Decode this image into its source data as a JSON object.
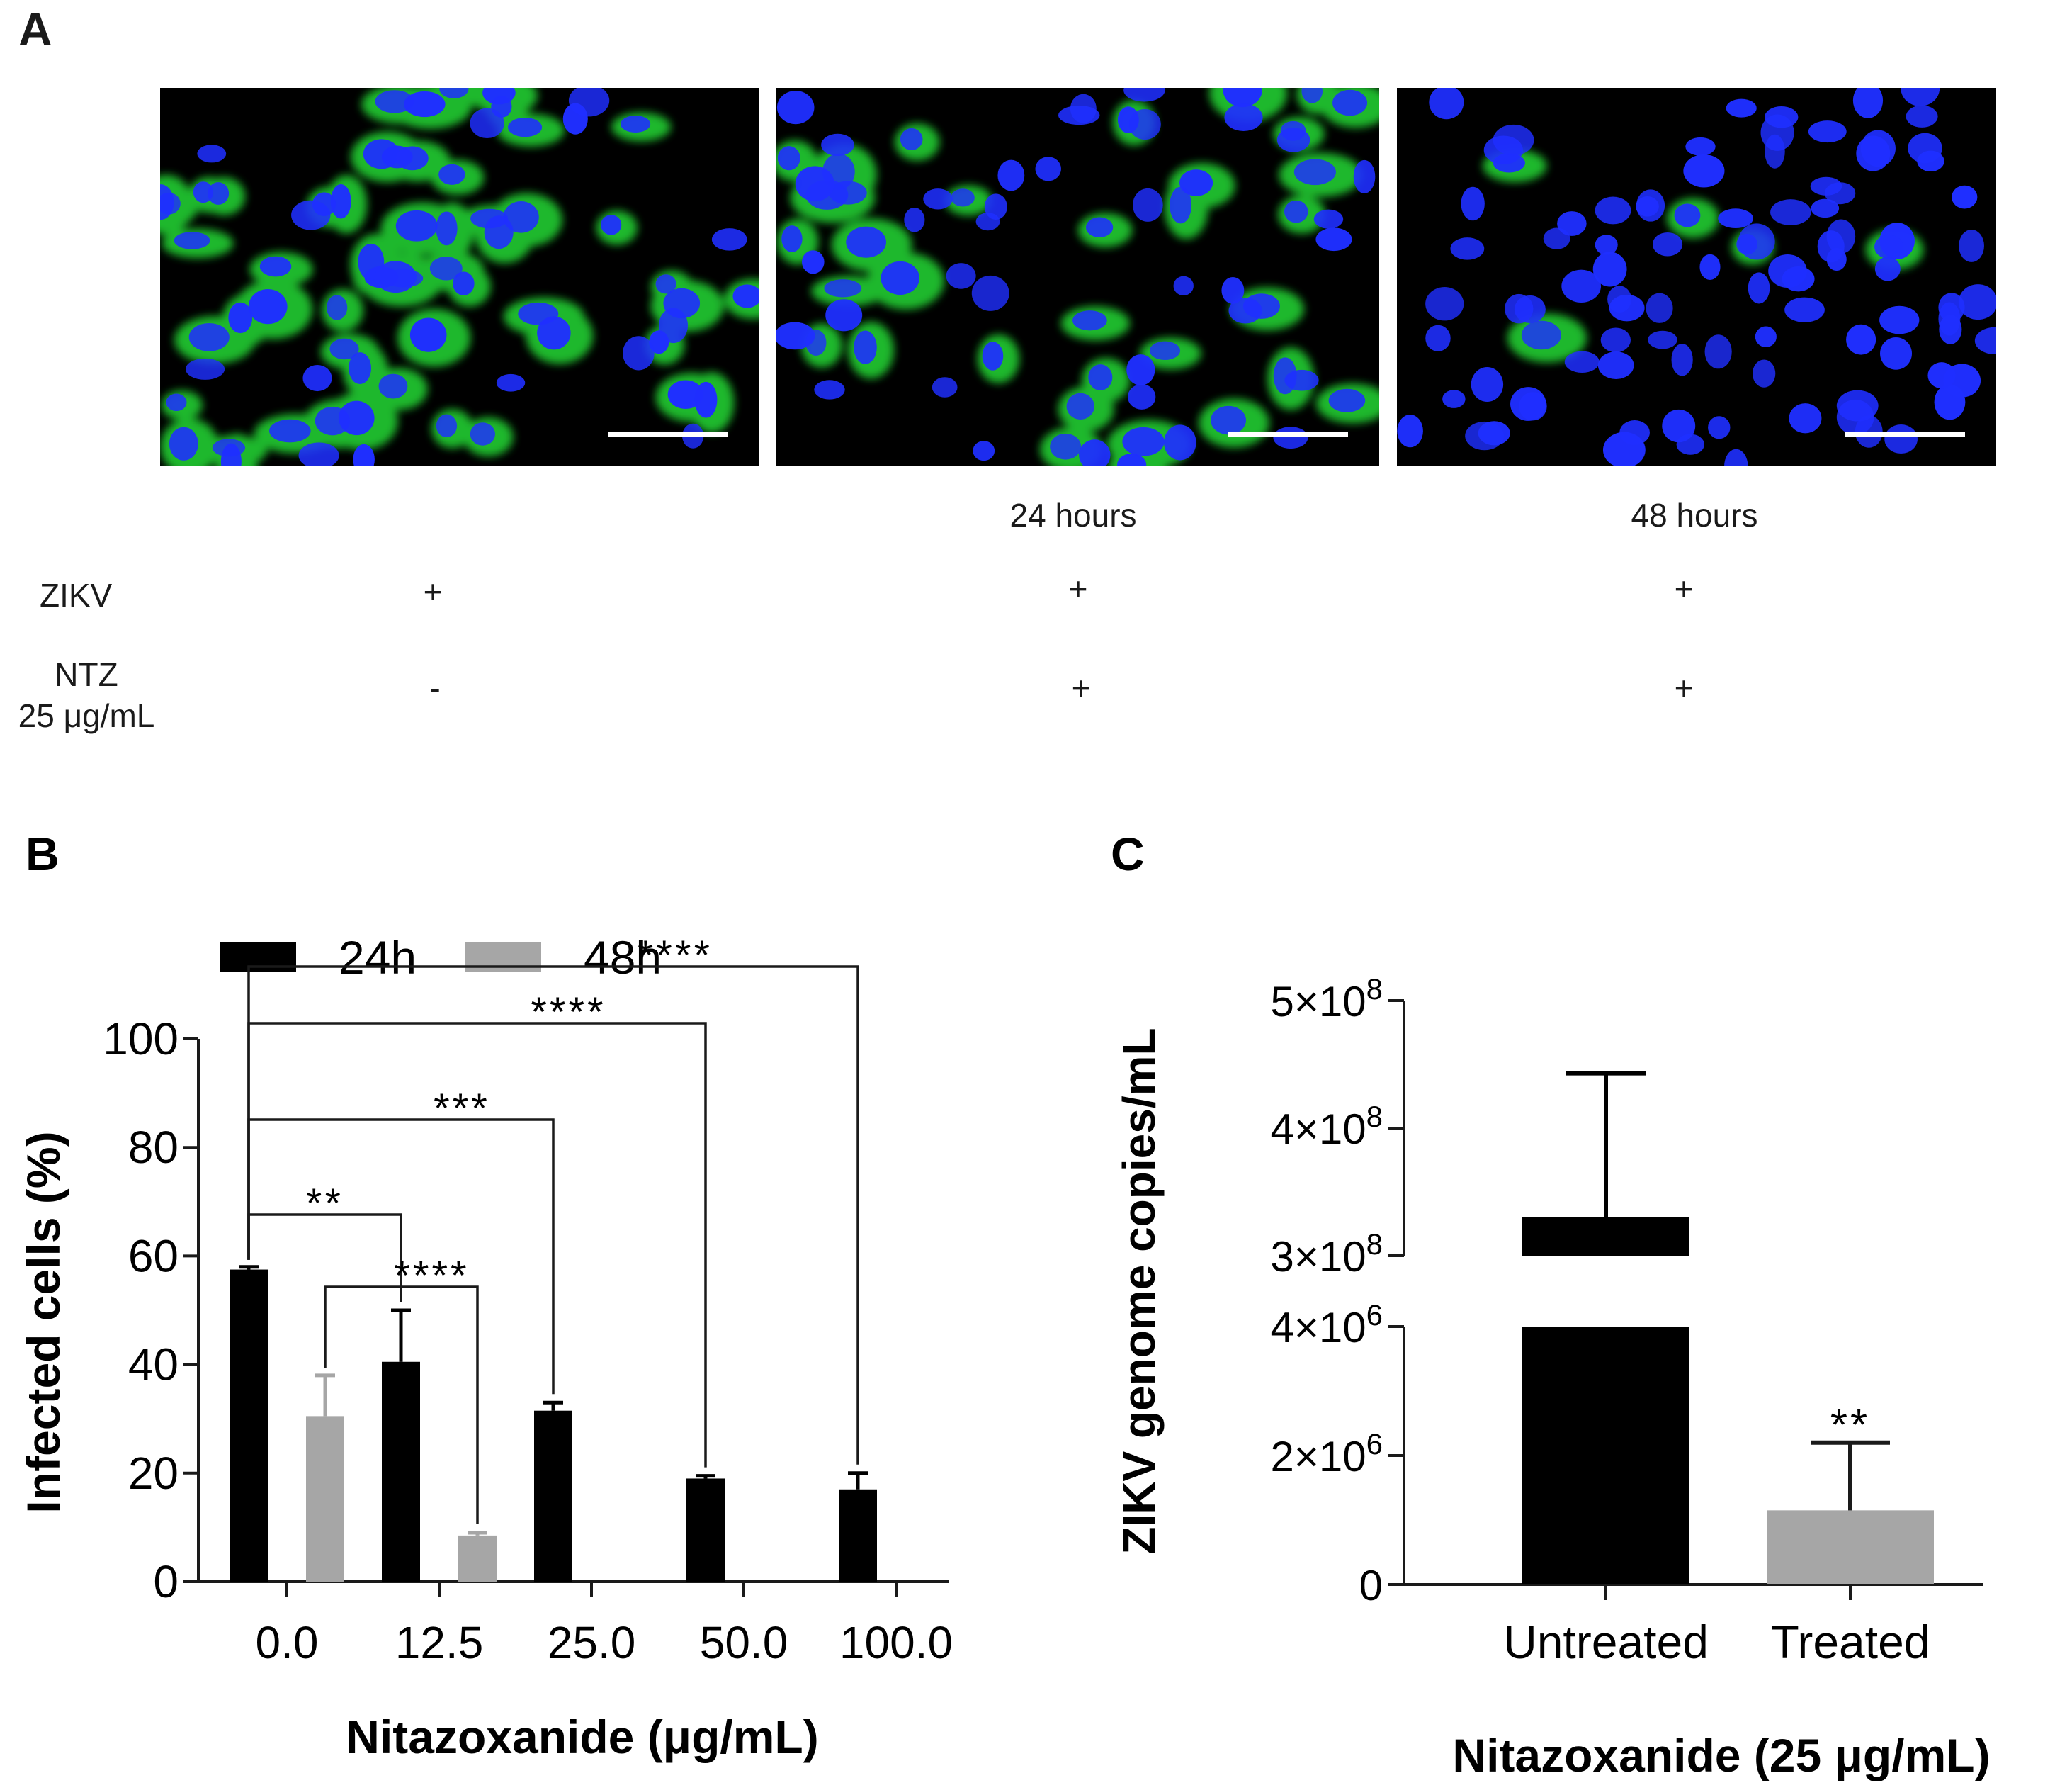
{
  "panelA": {
    "letter": "A",
    "time_labels": [
      "",
      "24 hours",
      "48 hours"
    ],
    "rows": [
      {
        "label": "ZIKV",
        "label_line2": "",
        "values": [
          "+",
          "+",
          "+"
        ]
      },
      {
        "label": "NTZ",
        "label_line2": "25 μg/mL",
        "values": [
          "-",
          "+",
          "+"
        ]
      }
    ],
    "colors": {
      "nuclei": "#1f2fff",
      "virus": "#22cc33",
      "background": "#000000",
      "scale_bar": "#ffffff"
    },
    "infection_levels": [
      0.8,
      0.45,
      0.03
    ]
  },
  "chart_data": [
    {
      "panel": "B",
      "type": "bar",
      "xlabel": "Nitazoxanide (μg/mL)",
      "ylabel": "Infected cells (%)",
      "categories": [
        "0.0",
        "12.5",
        "25.0",
        "50.0",
        "100.0"
      ],
      "ylim": [
        0,
        100
      ],
      "yticks": [
        0,
        20,
        40,
        60,
        80,
        100
      ],
      "series": [
        {
          "name": "24h",
          "color": "#000000",
          "values": [
            57.5,
            40.5,
            31.5,
            19,
            17
          ],
          "errors": [
            0.5,
            9.5,
            1.5,
            0.5,
            3
          ]
        },
        {
          "name": "48h",
          "color": "#a6a6a6",
          "values": [
            30.5,
            8.5,
            null,
            null,
            null
          ],
          "errors": [
            7.5,
            0.5,
            null,
            null,
            null
          ]
        }
      ],
      "legend_position": "top-left",
      "significance": [
        {
          "from": "0.0",
          "to": "12.5",
          "stars": "**",
          "series": [
            "24h",
            "24h"
          ]
        },
        {
          "from": "0.0",
          "to": "25.0",
          "stars": "***",
          "series": [
            "24h",
            "24h"
          ]
        },
        {
          "from": "0.0",
          "to": "50.0",
          "stars": "****",
          "series": [
            "24h",
            "24h"
          ]
        },
        {
          "from": "0.0",
          "to": "100.0",
          "stars": "****",
          "series": [
            "24h",
            "24h"
          ]
        },
        {
          "from": "0.0",
          "to": "12.5",
          "stars": "****",
          "series": [
            "48h",
            "48h"
          ]
        }
      ]
    },
    {
      "panel": "C",
      "type": "bar",
      "xlabel": "Nitazoxanide (25 μg/mL)",
      "ylabel": "ZIKV genome copies/mL",
      "categories": [
        "Untreated",
        "Treated"
      ],
      "y_axis": "broken",
      "lower_ylim": [
        0,
        4000000
      ],
      "upper_ylim": [
        300000000,
        500000000
      ],
      "lower_ticks": [
        "0",
        "2×10",
        "4×10"
      ],
      "lower_tick_values": [
        0,
        2000000,
        4000000
      ],
      "lower_tick_exponent": "6",
      "upper_ticks": [
        "3×10",
        "4×10",
        "5×10"
      ],
      "upper_tick_values": [
        300000000,
        400000000,
        500000000
      ],
      "upper_tick_exponent": "8",
      "series": [
        {
          "values": [
            330000000,
            1150000
          ],
          "errors": [
            113000000,
            1050000
          ],
          "colors": [
            "#000000",
            "#a6a6a6"
          ]
        }
      ],
      "significance": [
        {
          "bar": "Treated",
          "stars": "**"
        }
      ]
    }
  ]
}
